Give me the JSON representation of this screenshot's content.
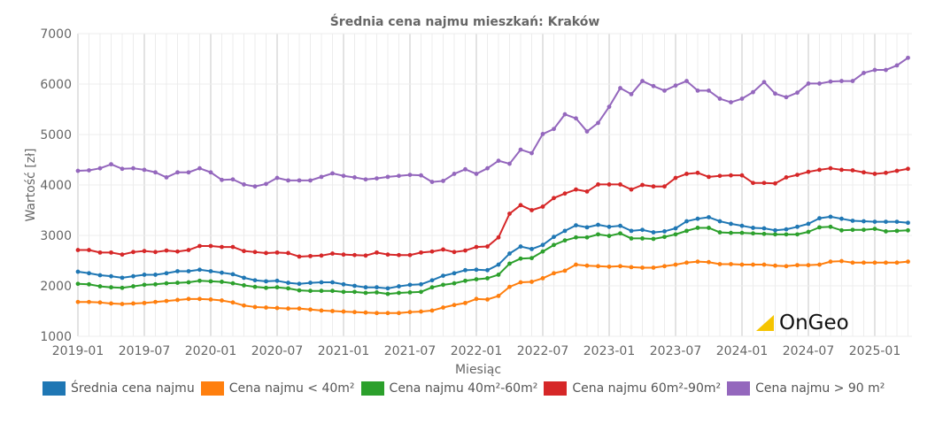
{
  "chart_data": {
    "type": "line",
    "title": "Średnia cena najmu mieszkań: Kraków",
    "xlabel": "Miesiąc",
    "ylabel": "Wartość [zł]",
    "ylim": [
      1000,
      7000
    ],
    "yticks": [
      1000,
      2000,
      3000,
      4000,
      5000,
      6000,
      7000
    ],
    "start_month": "2019-01",
    "xtick_labels": [
      "2019-01",
      "2019-07",
      "2020-01",
      "2020-07",
      "2021-01",
      "2021-07",
      "2022-01",
      "2022-07",
      "2023-01",
      "2023-07",
      "2024-01",
      "2024-07",
      "2025-01"
    ],
    "grid": true,
    "legend_position": "bottom",
    "series": [
      {
        "name": "Średnia cena najmu",
        "color": "#1f77b4",
        "values": [
          2280,
          2250,
          2210,
          2190,
          2160,
          2190,
          2220,
          2220,
          2250,
          2290,
          2290,
          2320,
          2290,
          2260,
          2230,
          2160,
          2110,
          2090,
          2100,
          2060,
          2040,
          2060,
          2070,
          2070,
          2030,
          2000,
          1970,
          1970,
          1950,
          1990,
          2020,
          2030,
          2110,
          2200,
          2250,
          2310,
          2320,
          2310,
          2420,
          2640,
          2780,
          2730,
          2810,
          2970,
          3090,
          3200,
          3160,
          3210,
          3170,
          3190,
          3090,
          3110,
          3060,
          3080,
          3140,
          3280,
          3330,
          3360,
          3280,
          3230,
          3190,
          3150,
          3140,
          3100,
          3120,
          3170,
          3230,
          3340,
          3370,
          3330,
          3290,
          3280,
          3270,
          3270,
          3270,
          3250
        ]
      },
      {
        "name": "Cena najmu < 40m²",
        "color": "#ff7f0e",
        "values": [
          1680,
          1680,
          1670,
          1650,
          1640,
          1650,
          1660,
          1680,
          1700,
          1720,
          1740,
          1740,
          1730,
          1710,
          1670,
          1610,
          1580,
          1570,
          1560,
          1550,
          1550,
          1530,
          1510,
          1500,
          1490,
          1480,
          1470,
          1460,
          1460,
          1460,
          1480,
          1490,
          1510,
          1570,
          1620,
          1660,
          1740,
          1730,
          1800,
          1980,
          2070,
          2080,
          2150,
          2250,
          2300,
          2420,
          2400,
          2390,
          2380,
          2390,
          2370,
          2360,
          2360,
          2390,
          2420,
          2460,
          2480,
          2470,
          2430,
          2430,
          2420,
          2420,
          2420,
          2400,
          2390,
          2410,
          2410,
          2420,
          2480,
          2490,
          2460,
          2460,
          2460,
          2460,
          2460,
          2480
        ]
      },
      {
        "name": "Cena najmu 40m²-60m²",
        "color": "#2ca02c",
        "values": [
          2040,
          2030,
          1990,
          1970,
          1960,
          1990,
          2020,
          2030,
          2050,
          2060,
          2070,
          2100,
          2090,
          2080,
          2050,
          2010,
          1980,
          1960,
          1970,
          1950,
          1910,
          1900,
          1900,
          1900,
          1880,
          1880,
          1860,
          1870,
          1840,
          1860,
          1870,
          1880,
          1970,
          2020,
          2050,
          2100,
          2130,
          2150,
          2220,
          2440,
          2540,
          2550,
          2680,
          2810,
          2900,
          2960,
          2960,
          3020,
          2990,
          3040,
          2940,
          2940,
          2930,
          2970,
          3020,
          3090,
          3150,
          3150,
          3060,
          3050,
          3050,
          3040,
          3030,
          3020,
          3020,
          3020,
          3070,
          3160,
          3170,
          3100,
          3110,
          3110,
          3130,
          3080,
          3090,
          3100
        ]
      },
      {
        "name": "Cena najmu 60m²-90m²",
        "color": "#d62728",
        "values": [
          2710,
          2710,
          2660,
          2660,
          2620,
          2670,
          2690,
          2670,
          2700,
          2680,
          2710,
          2790,
          2790,
          2770,
          2770,
          2690,
          2670,
          2650,
          2660,
          2650,
          2580,
          2590,
          2600,
          2640,
          2620,
          2610,
          2600,
          2660,
          2620,
          2610,
          2610,
          2660,
          2680,
          2720,
          2670,
          2700,
          2770,
          2780,
          2960,
          3430,
          3600,
          3500,
          3570,
          3740,
          3830,
          3910,
          3870,
          4010,
          4010,
          4010,
          3910,
          4000,
          3970,
          3970,
          4140,
          4220,
          4240,
          4160,
          4180,
          4190,
          4190,
          4040,
          4040,
          4030,
          4150,
          4200,
          4260,
          4300,
          4330,
          4300,
          4290,
          4250,
          4220,
          4240,
          4280,
          4320
        ]
      },
      {
        "name": "Cena najmu > 90 m²",
        "color": "#9467bd",
        "values": [
          4280,
          4290,
          4330,
          4410,
          4320,
          4330,
          4300,
          4250,
          4150,
          4250,
          4250,
          4330,
          4250,
          4100,
          4110,
          4010,
          3970,
          4020,
          4140,
          4090,
          4090,
          4090,
          4160,
          4230,
          4180,
          4150,
          4110,
          4130,
          4160,
          4180,
          4200,
          4190,
          4060,
          4080,
          4220,
          4310,
          4220,
          4330,
          4480,
          4420,
          4700,
          4630,
          5010,
          5110,
          5400,
          5320,
          5060,
          5230,
          5550,
          5920,
          5800,
          6060,
          5960,
          5870,
          5970,
          6060,
          5870,
          5870,
          5710,
          5640,
          5710,
          5840,
          6040,
          5810,
          5740,
          5830,
          6010,
          6010,
          6050,
          6060,
          6060,
          6220,
          6280,
          6280,
          6370,
          6520
        ]
      }
    ]
  },
  "logo": {
    "text": "OnGeo",
    "color": "#f5c400"
  }
}
